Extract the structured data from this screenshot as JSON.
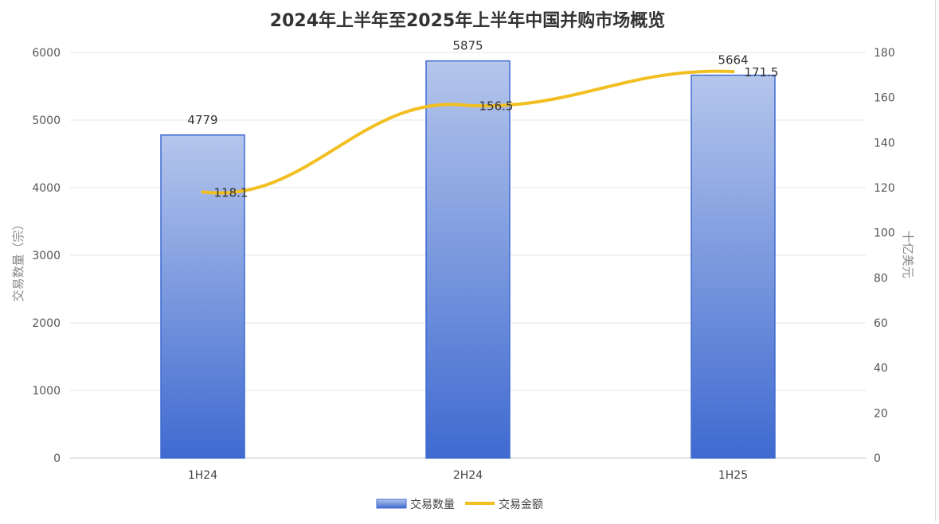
{
  "chart_data": {
    "type": "bar",
    "title": "2024年上半年至2025年上半年中国并购市场概览",
    "categories": [
      "1H24",
      "2H24",
      "1H25"
    ],
    "series": [
      {
        "name": "交易数量",
        "type": "bar",
        "axis": "left",
        "values": [
          4779,
          5875,
          5664
        ],
        "color": "#5b7fd6"
      },
      {
        "name": "交易金额",
        "type": "line",
        "axis": "right",
        "values": [
          118.1,
          156.5,
          171.5
        ],
        "color": "#f2bf22"
      }
    ],
    "ylabel": "交易数量（宗）",
    "y2label": "十亿美元",
    "ylim": [
      0,
      6000
    ],
    "y2lim": [
      0,
      180
    ],
    "yticks": [
      0,
      1000,
      2000,
      3000,
      4000,
      5000,
      6000
    ],
    "y2ticks": [
      0,
      20,
      40,
      60,
      80,
      100,
      120,
      140,
      160,
      180
    ],
    "grid": true,
    "legend": "bottom"
  }
}
